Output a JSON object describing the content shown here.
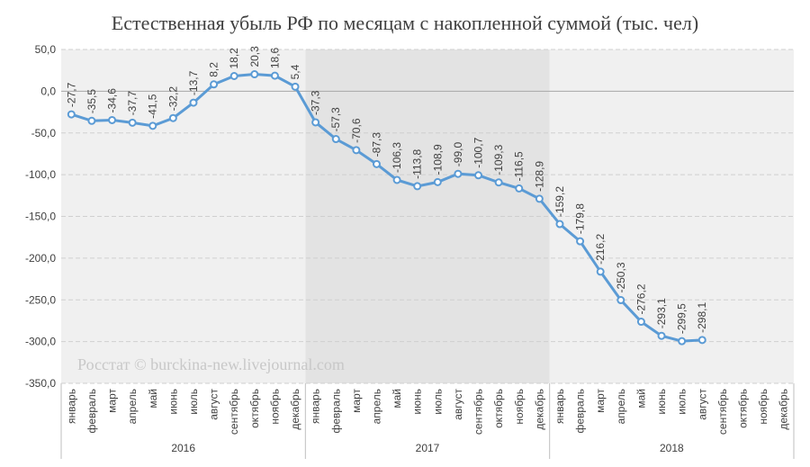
{
  "chart_data": {
    "type": "line",
    "title": "Естественная убыль РФ по месяцам с накопленной суммой (тыс. чел)",
    "annotation": "Росстат © burckina-new.livejournal.com",
    "categories": [
      "январь",
      "февраль",
      "март",
      "апрель",
      "май",
      "июнь",
      "июль",
      "август",
      "сентябрь",
      "октябрь",
      "ноябрь",
      "декабрь",
      "январь",
      "февраль",
      "март",
      "апрель",
      "май",
      "июнь",
      "июль",
      "август",
      "сентябрь",
      "октябрь",
      "ноябрь",
      "декабрь",
      "январь",
      "февраль",
      "март",
      "апрель",
      "май",
      "июнь",
      "июль",
      "август",
      "сентябрь",
      "октябрь",
      "ноябрь",
      "декабрь"
    ],
    "groups": [
      "2016",
      "2017",
      "2018"
    ],
    "values": [
      -27.7,
      -35.5,
      -34.6,
      -37.7,
      -41.5,
      -32.2,
      -13.7,
      8.2,
      18.2,
      20.3,
      18.6,
      5.4,
      -37.3,
      -57.3,
      -70.6,
      -87.3,
      -106.3,
      -113.8,
      -108.9,
      -99.0,
      -100.7,
      -109.3,
      -116.5,
      -128.9,
      -159.2,
      -179.8,
      -216.2,
      -250.3,
      -276.2,
      -293.1,
      -299.5,
      -298.1,
      null,
      null,
      null,
      null
    ],
    "value_labels": [
      "-27,7",
      "-35,5",
      "-34,6",
      "-37,7",
      "-41,5",
      "-32,2",
      "-13,7",
      "8,2",
      "18,2",
      "20,3",
      "18,6",
      "5,4",
      "-37,3",
      "-57,3",
      "-70,6",
      "-87,3",
      "-106,3",
      "-113,8",
      "-108,9",
      "-99,0",
      "-100,7",
      "-109,3",
      "-116,5",
      "-128,9",
      "-159,2",
      "-179,8",
      "-216,2",
      "-250,3",
      "-276,2",
      "-293,1",
      "-299,5",
      "-298,1",
      null,
      null,
      null,
      null
    ],
    "color": "#5b9bd5",
    "ylim": [
      -350,
      50
    ],
    "yticks": [
      {
        "value": 50,
        "label": "50,0"
      },
      {
        "value": 0,
        "label": "0,0"
      },
      {
        "value": -50,
        "label": "-50,0"
      },
      {
        "value": -100,
        "label": "-100,0"
      },
      {
        "value": -150,
        "label": "-150,0"
      },
      {
        "value": -200,
        "label": "-200,0"
      },
      {
        "value": -250,
        "label": "-250,0"
      },
      {
        "value": -300,
        "label": "-300,0"
      },
      {
        "value": -350,
        "label": "-350,0"
      }
    ],
    "grid": true
  }
}
